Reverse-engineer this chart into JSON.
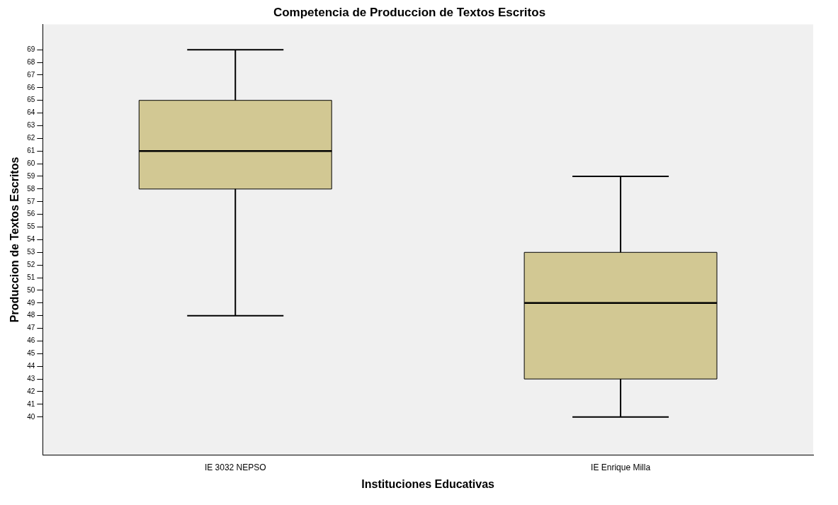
{
  "chart_data": {
    "type": "box",
    "title": "Competencia de Produccion de Textos Escritos",
    "xlabel": "Instituciones Educativas",
    "ylabel": "Produccion de Textos Escritos",
    "categories": [
      "IE 3032 NEPSO",
      "IE Enrique Milla"
    ],
    "boxes": [
      {
        "low": 48,
        "q1": 58,
        "median": 61,
        "q3": 65,
        "high": 69
      },
      {
        "low": 40,
        "q1": 43,
        "median": 49,
        "q3": 53,
        "high": 59
      }
    ],
    "color": "#d2c893",
    "ylim": [
      37,
      71
    ],
    "yticks": [
      40,
      41,
      42,
      43,
      44,
      45,
      46,
      47,
      48,
      49,
      50,
      51,
      52,
      53,
      54,
      55,
      56,
      57,
      58,
      59,
      60,
      61,
      62,
      63,
      64,
      65,
      66,
      67,
      68,
      69
    ],
    "grid": false
  }
}
